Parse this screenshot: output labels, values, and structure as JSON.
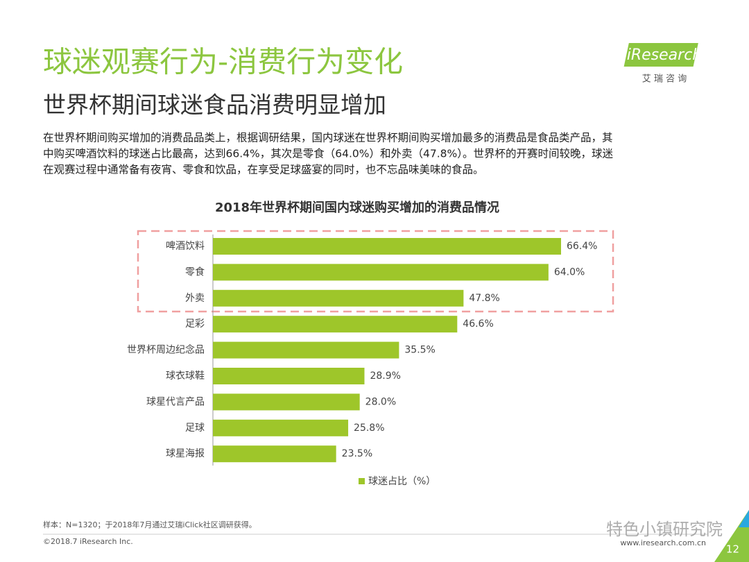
{
  "header": {
    "title": "球迷观赛行为-消费行为变化",
    "subtitle": "世界杯期间球迷食品消费明显增加",
    "paragraph": [
      "在世界杯期间购买增加的消费品品类上，根据调研结果，国内球迷在世界杯期间购买增加最多的消费品是食品类产品，其",
      "中购买啤酒饮料的球迷占比最高，达到66.4%，其次是零食（64.0%）和外卖（47.8%）。世界杯的开赛时间较晚，球迷",
      "在观赛过程中通常备有夜宵、零食和饮品，在享受足球盛宴的同时，也不忘品味美味的食品。"
    ]
  },
  "logo": {
    "name": "iResearch",
    "cn": "艾 瑞 咨 询"
  },
  "chart_data": {
    "type": "hbar",
    "title": "2018年世界杯期间国内球迷购买增加的消费品情况",
    "categories": [
      "啤酒饮料",
      "零食",
      "外卖",
      "足彩",
      "世界杯周边纪念品",
      "球衣球鞋",
      "球星代言产品",
      "足球",
      "球星海报"
    ],
    "series": [
      {
        "name": "球迷占比（%）",
        "color": "#9ec62a",
        "values": [
          66.4,
          64.0,
          47.8,
          46.6,
          35.5,
          28.9,
          28.0,
          25.8,
          23.5
        ],
        "value_labels": [
          "66.4%",
          "64.0%",
          "47.8%",
          "46.6%",
          "35.5%",
          "28.9%",
          "28.0%",
          "25.8%",
          "23.5%"
        ]
      }
    ]
  },
  "footer": {
    "note": "样本：N=1320；于2018年7月通过艾瑞iClick社区调研获得。",
    "copyright": "©2018.7 iResearch Inc.",
    "url": "www.iresearch.com.cn",
    "page": "12",
    "watermark": "特色小镇研究院"
  }
}
